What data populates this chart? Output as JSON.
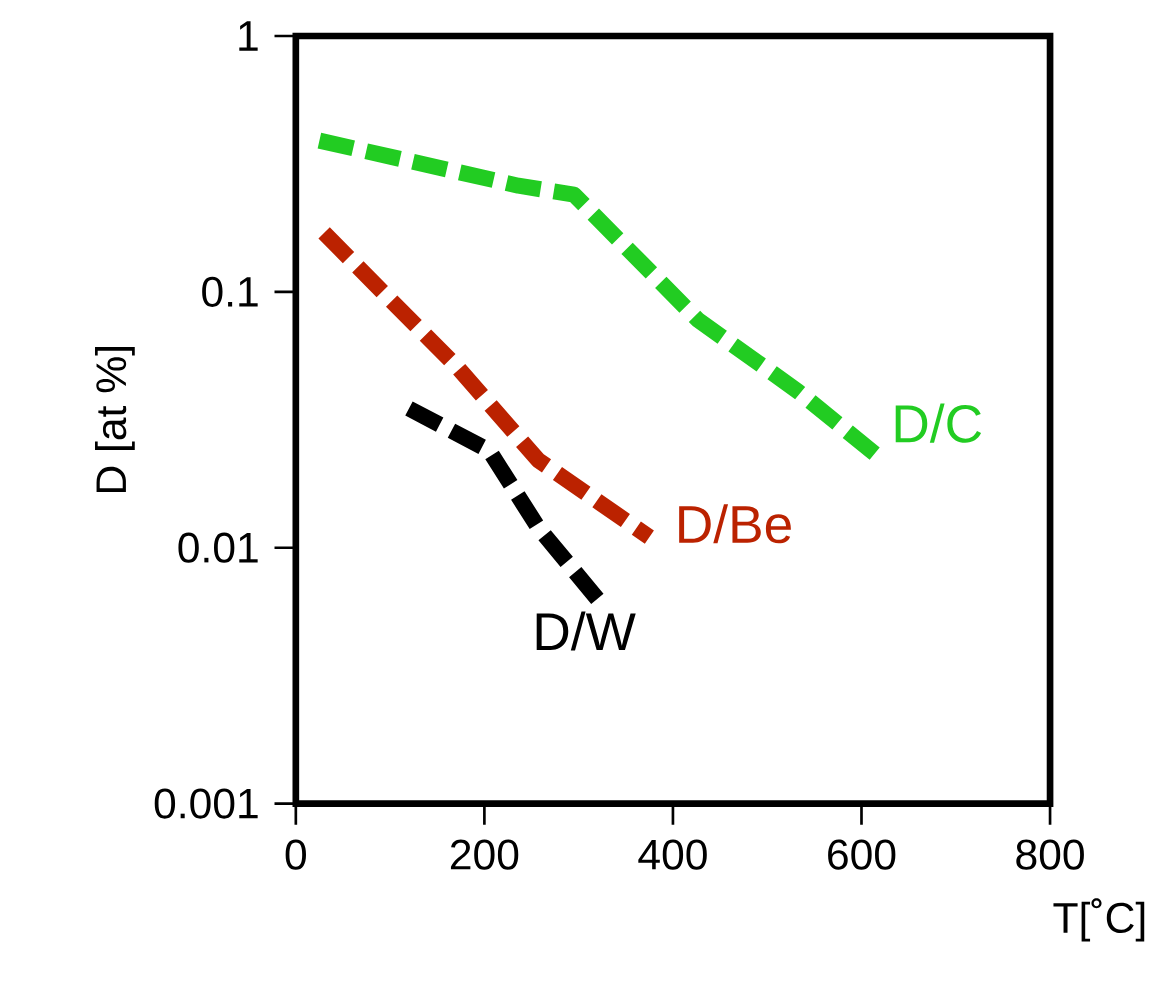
{
  "chart_data": {
    "type": "line",
    "xlabel": "T[˚C]",
    "ylabel": "D [at %]",
    "log": "y",
    "xlim": [
      0,
      800
    ],
    "ylim": [
      0.001,
      1
    ],
    "xticks": [
      0,
      200,
      400,
      600,
      800
    ],
    "yticks": [
      {
        "value": 0.001,
        "label": "0.001"
      },
      {
        "value": 0.01,
        "label": "0.01"
      },
      {
        "value": 0.1,
        "label": "0.1"
      },
      {
        "value": 1,
        "label": "1"
      }
    ],
    "line_style": "dashed",
    "marker": "none",
    "series": [
      {
        "name": "D/C",
        "color": "#22cc22",
        "x": [
          25,
          236,
          295,
          426,
          532,
          616
        ],
        "values": [
          0.39,
          0.26,
          0.24,
          0.078,
          0.041,
          0.023
        ]
      },
      {
        "name": "D/Be",
        "color": "#bb2200",
        "x": [
          30,
          173,
          257,
          375
        ],
        "values": [
          0.17,
          0.05,
          0.022,
          0.011
        ]
      },
      {
        "name": "D/W",
        "color": "#000000",
        "x": [
          120,
          205,
          257,
          320
        ],
        "values": [
          0.035,
          0.024,
          0.012,
          0.0063
        ]
      }
    ]
  }
}
